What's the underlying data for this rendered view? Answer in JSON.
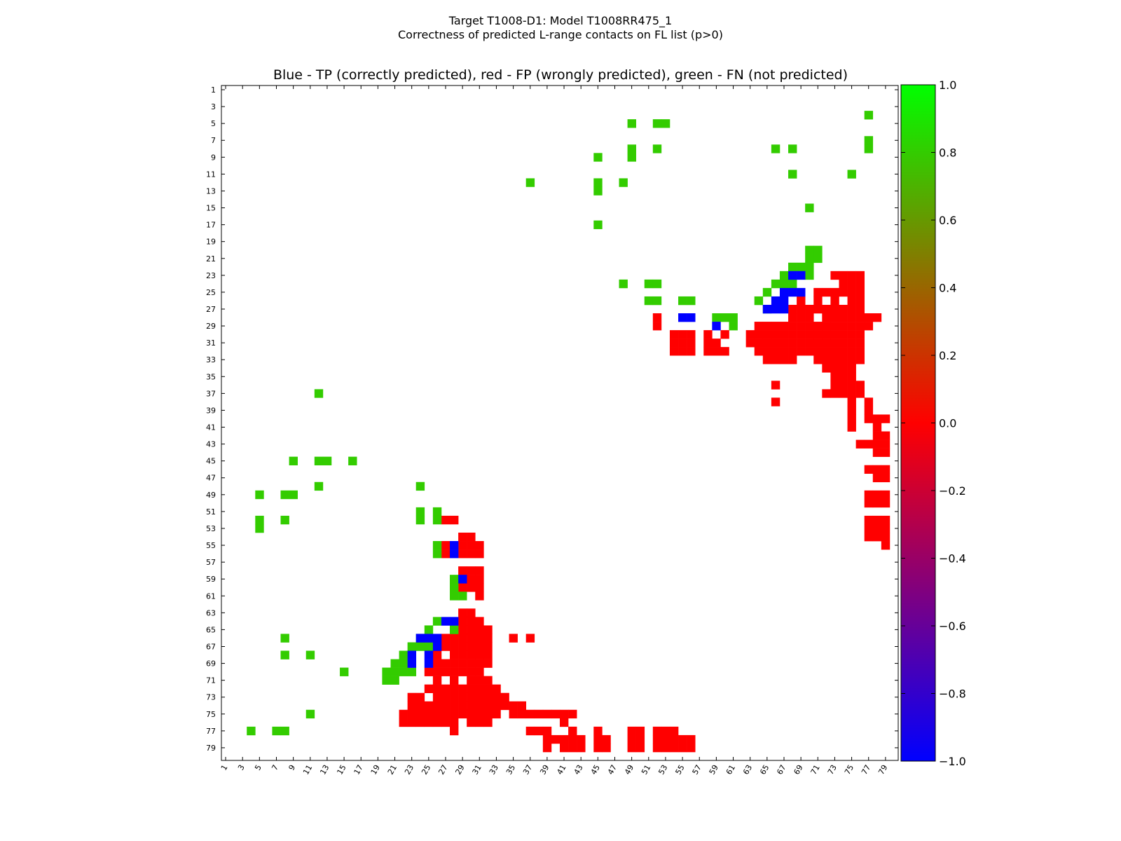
{
  "figure": {
    "title_line1": "Target T1008-D1: Model T1008RR475_1",
    "title_line2": "Correctness of predicted L-range contacts on FL list (p>0)",
    "axes_title": "Blue - TP (correctly predicted), red - FP (wrongly predicted), green - FN (not predicted)"
  },
  "colors": {
    "TP": "#0000ff",
    "FP": "#ff0000",
    "FN": "#33cc00",
    "frame": "#000000"
  },
  "chart_data": {
    "type": "heatmap",
    "title": "Blue - TP (correctly predicted), red - FP (wrongly predicted), green - FN (not predicted)",
    "xlim": [
      1,
      80
    ],
    "ylim": [
      1,
      80
    ],
    "x_ticks": [
      "1",
      "3",
      "5",
      "7",
      "9",
      "11",
      "13",
      "15",
      "17",
      "19",
      "21",
      "23",
      "25",
      "27",
      "29",
      "31",
      "33",
      "35",
      "37",
      "39",
      "41",
      "43",
      "45",
      "47",
      "49",
      "51",
      "53",
      "55",
      "57",
      "59",
      "61",
      "63",
      "65",
      "67",
      "69",
      "71",
      "73",
      "75",
      "77",
      "79"
    ],
    "y_ticks": [
      "1",
      "3",
      "5",
      "7",
      "9",
      "11",
      "13",
      "15",
      "17",
      "19",
      "21",
      "23",
      "25",
      "27",
      "29",
      "31",
      "33",
      "35",
      "37",
      "39",
      "41",
      "43",
      "45",
      "47",
      "49",
      "51",
      "53",
      "55",
      "57",
      "59",
      "61",
      "63",
      "65",
      "67",
      "69",
      "71",
      "73",
      "75",
      "77",
      "79"
    ],
    "colorbar": {
      "range": [
        -1.0,
        1.0
      ],
      "ticks": [
        "1.0",
        "0.8",
        "0.6",
        "0.4",
        "0.2",
        "0.0",
        "−0.2",
        "−0.4",
        "−0.6",
        "−0.8",
        "−1.0"
      ],
      "ramp": [
        "#0000ff",
        "#ff0000",
        "#00ff00"
      ]
    },
    "legend": {
      "TP": "correctly predicted (blue)",
      "FP": "wrongly predicted (red)",
      "FN": "not predicted (green)"
    },
    "cells": {
      "TP": [
        [
          68,
          23
        ],
        [
          69,
          23
        ],
        [
          67,
          25
        ],
        [
          68,
          25
        ],
        [
          69,
          25
        ],
        [
          66,
          26
        ],
        [
          67,
          26
        ],
        [
          65,
          27
        ],
        [
          66,
          27
        ],
        [
          67,
          27
        ],
        [
          55,
          28
        ],
        [
          56,
          28
        ],
        [
          59,
          29
        ],
        [
          27,
          64
        ],
        [
          28,
          64
        ],
        [
          24,
          66
        ],
        [
          25,
          66
        ],
        [
          26,
          66
        ],
        [
          26,
          67
        ],
        [
          23,
          68
        ],
        [
          25,
          68
        ],
        [
          23,
          69
        ],
        [
          25,
          69
        ],
        [
          28,
          55
        ],
        [
          28,
          56
        ],
        [
          29,
          59
        ]
      ],
      "FN": [
        [
          49,
          5
        ],
        [
          52,
          5
        ],
        [
          53,
          5
        ],
        [
          77,
          4
        ],
        [
          45,
          9
        ],
        [
          49,
          8
        ],
        [
          49,
          9
        ],
        [
          52,
          8
        ],
        [
          66,
          8
        ],
        [
          68,
          8
        ],
        [
          77,
          7
        ],
        [
          77,
          8
        ],
        [
          37,
          12
        ],
        [
          45,
          12
        ],
        [
          45,
          13
        ],
        [
          48,
          12
        ],
        [
          68,
          11
        ],
        [
          75,
          11
        ],
        [
          70,
          15
        ],
        [
          45,
          17
        ],
        [
          70,
          20
        ],
        [
          71,
          20
        ],
        [
          70,
          21
        ],
        [
          71,
          21
        ],
        [
          68,
          22
        ],
        [
          69,
          22
        ],
        [
          70,
          22
        ],
        [
          67,
          23
        ],
        [
          70,
          23
        ],
        [
          66,
          24
        ],
        [
          67,
          24
        ],
        [
          68,
          24
        ],
        [
          48,
          24
        ],
        [
          51,
          24
        ],
        [
          52,
          24
        ],
        [
          65,
          25
        ],
        [
          51,
          26
        ],
        [
          52,
          26
        ],
        [
          55,
          26
        ],
        [
          56,
          26
        ],
        [
          64,
          26
        ],
        [
          65,
          27
        ],
        [
          59,
          28
        ],
        [
          60,
          28
        ],
        [
          61,
          28
        ],
        [
          61,
          29
        ],
        [
          12,
          37
        ],
        [
          9,
          45
        ],
        [
          12,
          45
        ],
        [
          13,
          45
        ],
        [
          16,
          45
        ],
        [
          12,
          48
        ],
        [
          24,
          48
        ],
        [
          5,
          49
        ],
        [
          8,
          49
        ],
        [
          9,
          49
        ],
        [
          24,
          51
        ],
        [
          26,
          51
        ],
        [
          24,
          52
        ],
        [
          26,
          52
        ],
        [
          5,
          52
        ],
        [
          8,
          52
        ],
        [
          5,
          53
        ],
        [
          26,
          55
        ],
        [
          26,
          56
        ],
        [
          28,
          59
        ],
        [
          28,
          60
        ],
        [
          28,
          61
        ],
        [
          29,
          61
        ],
        [
          26,
          64
        ],
        [
          28,
          65
        ],
        [
          25,
          65
        ],
        [
          24,
          66
        ],
        [
          23,
          67
        ],
        [
          24,
          67
        ],
        [
          25,
          67
        ],
        [
          22,
          68
        ],
        [
          21,
          69
        ],
        [
          22,
          69
        ],
        [
          20,
          70
        ],
        [
          21,
          70
        ],
        [
          22,
          70
        ],
        [
          23,
          70
        ],
        [
          20,
          71
        ],
        [
          21,
          71
        ],
        [
          8,
          66
        ],
        [
          8,
          68
        ],
        [
          11,
          68
        ],
        [
          15,
          70
        ],
        [
          11,
          75
        ],
        [
          4,
          77
        ],
        [
          7,
          77
        ],
        [
          8,
          77
        ]
      ],
      "FP_rows": [
        [
          23,
          [
            73,
            74,
            75,
            76
          ]
        ],
        [
          24,
          [
            74,
            75,
            76
          ]
        ],
        [
          25,
          [
            71,
            72,
            73,
            74,
            75,
            76
          ]
        ],
        [
          26,
          [
            69,
            71,
            73,
            75,
            76
          ]
        ],
        [
          27,
          [
            68,
            69,
            70,
            71,
            72,
            73,
            74,
            75,
            76
          ]
        ],
        [
          28,
          [
            52,
            68,
            69,
            70,
            72,
            73,
            74,
            75,
            76,
            77,
            78
          ]
        ],
        [
          29,
          [
            52,
            64,
            65,
            66,
            67,
            68,
            69,
            70,
            71,
            72,
            73,
            74,
            75,
            76,
            77
          ]
        ],
        [
          30,
          [
            54,
            55,
            56,
            58,
            60,
            63,
            64,
            65,
            66,
            67,
            68,
            69,
            70,
            71,
            72,
            73,
            74,
            75,
            76
          ]
        ],
        [
          31,
          [
            54,
            55,
            56,
            58,
            59,
            63,
            64,
            65,
            66,
            67,
            68,
            69,
            70,
            71,
            72,
            73,
            74,
            75,
            76
          ]
        ],
        [
          32,
          [
            54,
            55,
            56,
            58,
            59,
            60,
            64,
            65,
            66,
            67,
            68,
            69,
            70,
            71,
            72,
            73,
            74,
            75,
            76
          ]
        ],
        [
          33,
          [
            65,
            66,
            67,
            68,
            71,
            72,
            73,
            74,
            75,
            76
          ]
        ],
        [
          34,
          [
            72,
            73,
            74,
            75
          ]
        ],
        [
          35,
          [
            73,
            74,
            75
          ]
        ],
        [
          36,
          [
            66,
            73,
            74,
            75,
            76
          ]
        ],
        [
          37,
          [
            72,
            73,
            74,
            75,
            76
          ]
        ],
        [
          38,
          [
            66,
            75,
            77
          ]
        ],
        [
          39,
          [
            75,
            77
          ]
        ],
        [
          40,
          [
            75,
            77,
            78,
            79
          ]
        ],
        [
          41,
          [
            75,
            78
          ]
        ],
        [
          42,
          [
            78,
            79
          ]
        ],
        [
          43,
          [
            76,
            77,
            78,
            79
          ]
        ],
        [
          44,
          [
            78,
            79
          ]
        ],
        [
          46,
          [
            77,
            78,
            79
          ]
        ],
        [
          47,
          [
            78,
            79
          ]
        ],
        [
          49,
          [
            77,
            78,
            79
          ]
        ],
        [
          50,
          [
            77,
            78,
            79
          ]
        ],
        [
          52,
          [
            77,
            78,
            79
          ]
        ],
        [
          53,
          [
            77,
            78,
            79
          ]
        ],
        [
          54,
          [
            77,
            78,
            79
          ]
        ],
        [
          55,
          [
            79
          ]
        ],
        [
          52,
          [
            27,
            28
          ]
        ],
        [
          54,
          [
            29,
            30
          ]
        ],
        [
          55,
          [
            27,
            29,
            30,
            31
          ]
        ],
        [
          56,
          [
            27,
            29,
            30,
            31
          ]
        ],
        [
          58,
          [
            29,
            30,
            31
          ]
        ],
        [
          59,
          [
            30,
            31
          ]
        ],
        [
          60,
          [
            29,
            30,
            31
          ]
        ],
        [
          61,
          [
            31
          ]
        ],
        [
          63,
          [
            29,
            30
          ]
        ],
        [
          64,
          [
            29,
            30,
            31
          ]
        ],
        [
          65,
          [
            28,
            29,
            30,
            31,
            32
          ]
        ],
        [
          66,
          [
            27,
            28,
            29,
            30,
            31,
            32,
            35,
            37
          ]
        ],
        [
          67,
          [
            27,
            28,
            29,
            30,
            31,
            32
          ]
        ],
        [
          68,
          [
            26,
            28,
            29,
            30,
            31,
            32
          ]
        ],
        [
          69,
          [
            26,
            27,
            28,
            29,
            30,
            31,
            32
          ]
        ],
        [
          70,
          [
            25,
            26,
            27,
            28,
            29,
            30,
            31
          ]
        ],
        [
          71,
          [
            26,
            28,
            30,
            31,
            32
          ]
        ],
        [
          72,
          [
            25,
            26,
            27,
            28,
            29,
            30,
            31,
            32,
            33
          ]
        ],
        [
          73,
          [
            23,
            24,
            26,
            27,
            28,
            29,
            30,
            31,
            32,
            33,
            34
          ]
        ],
        [
          74,
          [
            23,
            24,
            25,
            26,
            27,
            28,
            29,
            30,
            31,
            32,
            33,
            34,
            35,
            36
          ]
        ],
        [
          75,
          [
            22,
            23,
            24,
            25,
            26,
            27,
            28,
            29,
            30,
            31,
            32,
            33,
            35,
            36,
            37,
            38,
            39,
            40,
            41,
            42
          ]
        ],
        [
          76,
          [
            22,
            23,
            24,
            25,
            26,
            27,
            28,
            30,
            31,
            32,
            41
          ]
        ],
        [
          77,
          [
            28,
            37,
            38,
            39,
            42,
            45,
            49,
            50,
            52,
            53,
            54
          ]
        ],
        [
          78,
          [
            39,
            40,
            41,
            42,
            43,
            45,
            46,
            49,
            50,
            52,
            53,
            54,
            55,
            56
          ]
        ],
        [
          79,
          [
            39,
            41,
            42,
            43,
            45,
            46,
            49,
            50,
            52,
            53,
            54,
            55,
            56
          ]
        ]
      ]
    }
  }
}
